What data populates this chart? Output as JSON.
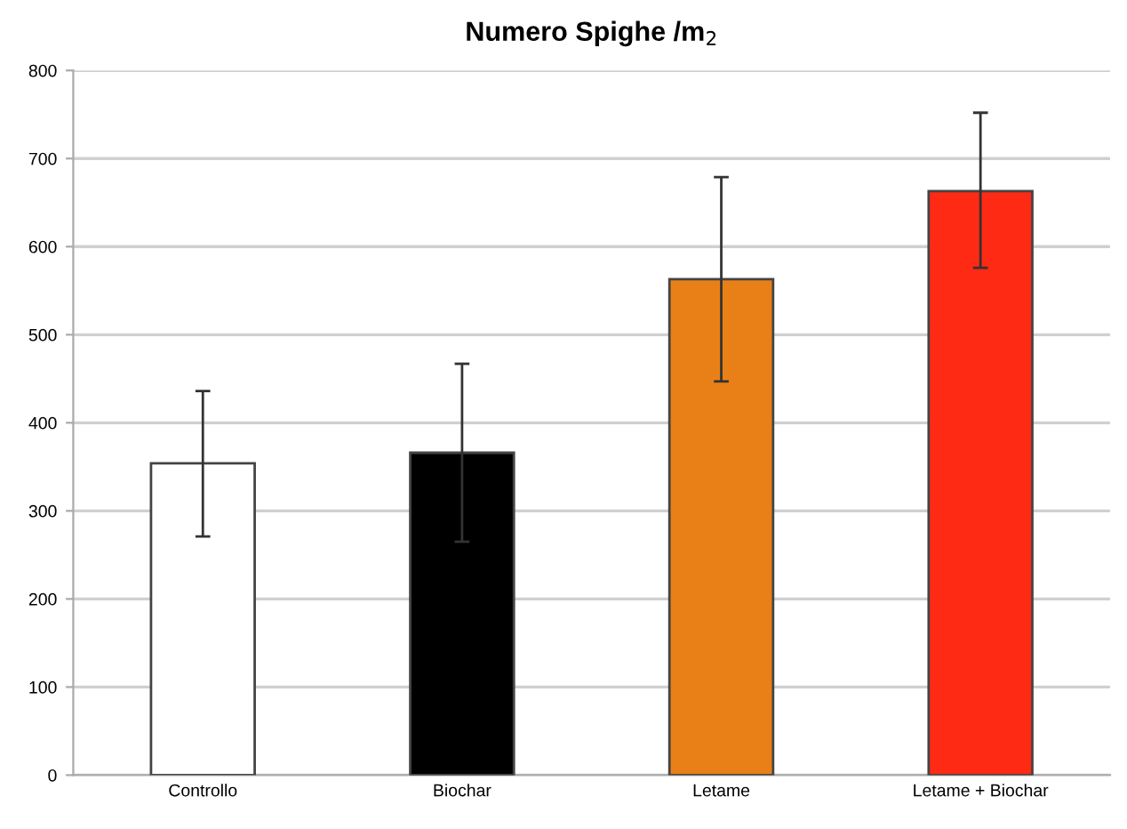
{
  "chart_data": {
    "type": "bar",
    "title": "Numero Spighe /m$_{2}$",
    "categories": [
      "Controllo",
      "Biochar",
      "Letame",
      "Letame + Biochar"
    ],
    "values": [
      354,
      366,
      563,
      663
    ],
    "colors": [
      "#ffffff",
      "#000000",
      "#e98017",
      "#ff2a14"
    ],
    "errors": [
      [
        271,
        436
      ],
      [
        265,
        467
      ],
      [
        447,
        679
      ],
      [
        576,
        752
      ]
    ],
    "ylim": [
      0,
      800
    ],
    "yticks": [
      0,
      100,
      200,
      300,
      400,
      500,
      600,
      700,
      800
    ],
    "grid": "y"
  }
}
